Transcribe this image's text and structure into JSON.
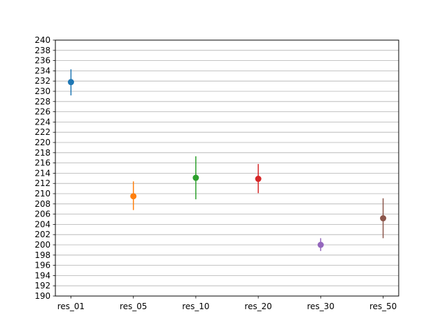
{
  "chart_data": {
    "type": "scatter",
    "title": "",
    "xlabel": "",
    "ylabel": "",
    "ylim": [
      190,
      240
    ],
    "yticks": [
      190,
      192,
      194,
      196,
      198,
      200,
      202,
      204,
      206,
      208,
      210,
      212,
      214,
      216,
      218,
      220,
      222,
      224,
      226,
      228,
      230,
      232,
      234,
      236,
      238,
      240
    ],
    "grid": "horizontal",
    "categories": [
      "res_01",
      "res_05",
      "res_10",
      "res_20",
      "res_30",
      "res_50"
    ],
    "series": [
      {
        "category": "res_01",
        "value": 231.8,
        "err_low": 229.2,
        "err_high": 234.3,
        "color": "#1f77b4"
      },
      {
        "category": "res_05",
        "value": 209.5,
        "err_low": 206.8,
        "err_high": 212.4,
        "color": "#ff7f0e"
      },
      {
        "category": "res_10",
        "value": 213.1,
        "err_low": 208.9,
        "err_high": 217.3,
        "color": "#2ca02c"
      },
      {
        "category": "res_20",
        "value": 212.9,
        "err_low": 210.1,
        "err_high": 215.8,
        "color": "#d62728"
      },
      {
        "category": "res_30",
        "value": 200.0,
        "err_low": 198.8,
        "err_high": 201.3,
        "color": "#9467bd"
      },
      {
        "category": "res_50",
        "value": 205.2,
        "err_low": 201.3,
        "err_high": 209.1,
        "color": "#8c564b"
      }
    ]
  }
}
